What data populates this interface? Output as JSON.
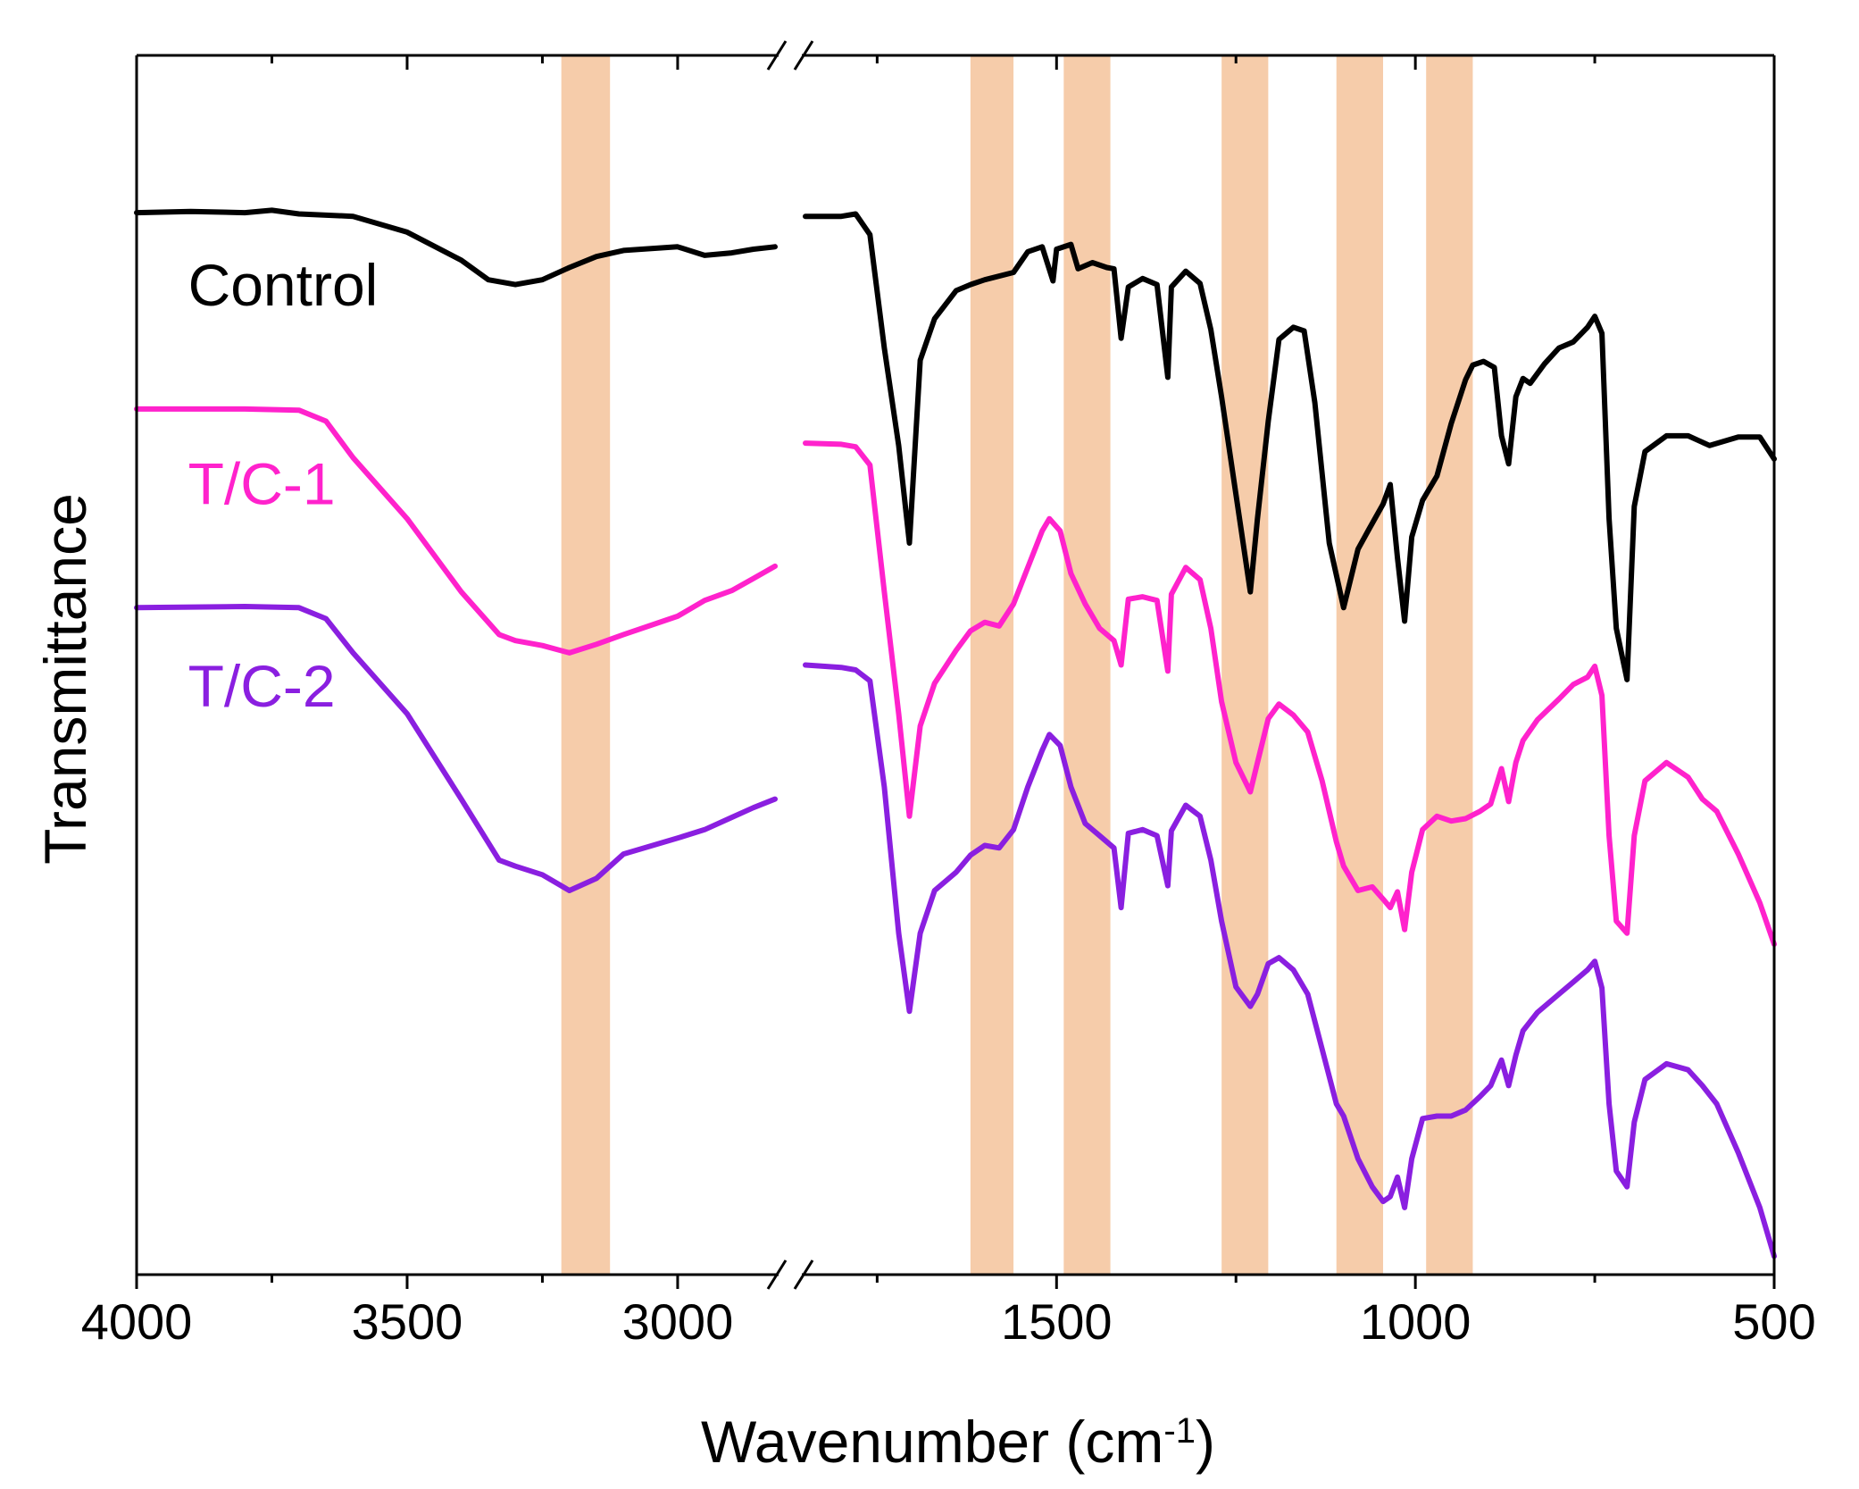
{
  "chart_data": {
    "type": "line",
    "title": "",
    "xlabel": "Wavenumber (cm",
    "xlabel_sup": "-1",
    "xlabel_close": ")",
    "ylabel": "Transmittance",
    "x_axis_reversed": true,
    "x_axis_break": {
      "from": 2820,
      "to": 1850
    },
    "xlim_segments": [
      [
        4000,
        2820
      ],
      [
        1850,
        500
      ]
    ],
    "x_ticks_major": [
      4000,
      3500,
      3000,
      1500,
      1000,
      500
    ],
    "x_tick_labels": [
      "4000",
      "3500",
      "3000",
      "1500",
      "1000",
      "500"
    ],
    "y_ticks_shown": false,
    "ylim": [
      0,
      100
    ],
    "grid": false,
    "highlight_bands": [
      [
        3215,
        3125
      ],
      [
        1620,
        1560
      ],
      [
        1490,
        1425
      ],
      [
        1270,
        1205
      ],
      [
        1110,
        1045
      ],
      [
        985,
        920
      ]
    ],
    "highlight_color": "#f6ccaa",
    "series": [
      {
        "name": "Control",
        "color": "#000000",
        "points": [
          [
            4000,
            87.1
          ],
          [
            3900,
            87.2
          ],
          [
            3800,
            87.1
          ],
          [
            3750,
            87.3
          ],
          [
            3700,
            87.0
          ],
          [
            3600,
            86.8
          ],
          [
            3500,
            85.5
          ],
          [
            3400,
            83.2
          ],
          [
            3350,
            81.6
          ],
          [
            3300,
            81.2
          ],
          [
            3250,
            81.6
          ],
          [
            3200,
            82.6
          ],
          [
            3150,
            83.5
          ],
          [
            3100,
            84.0
          ],
          [
            3000,
            84.3
          ],
          [
            2950,
            83.6
          ],
          [
            2900,
            83.8
          ],
          [
            2860,
            84.1
          ],
          [
            2820,
            84.3
          ],
          null,
          [
            1850,
            86.8
          ],
          [
            1800,
            86.8
          ],
          [
            1780,
            87.0
          ],
          [
            1760,
            85.3
          ],
          [
            1740,
            76.0
          ],
          [
            1720,
            68.0
          ],
          [
            1705,
            60.0
          ],
          [
            1690,
            75.0
          ],
          [
            1670,
            78.4
          ],
          [
            1640,
            80.7
          ],
          [
            1620,
            81.2
          ],
          [
            1600,
            81.6
          ],
          [
            1560,
            82.2
          ],
          [
            1540,
            83.9
          ],
          [
            1520,
            84.3
          ],
          [
            1505,
            81.5
          ],
          [
            1500,
            84.1
          ],
          [
            1480,
            84.5
          ],
          [
            1470,
            82.5
          ],
          [
            1450,
            83.0
          ],
          [
            1430,
            82.6
          ],
          [
            1420,
            82.5
          ],
          [
            1410,
            76.8
          ],
          [
            1400,
            81.0
          ],
          [
            1380,
            81.7
          ],
          [
            1360,
            81.2
          ],
          [
            1345,
            73.6
          ],
          [
            1340,
            81.0
          ],
          [
            1320,
            82.3
          ],
          [
            1300,
            81.3
          ],
          [
            1285,
            77.5
          ],
          [
            1270,
            72.0
          ],
          [
            1250,
            64.0
          ],
          [
            1230,
            56.0
          ],
          [
            1220,
            62.0
          ],
          [
            1205,
            70.0
          ],
          [
            1190,
            76.7
          ],
          [
            1170,
            77.7
          ],
          [
            1155,
            77.4
          ],
          [
            1140,
            71.5
          ],
          [
            1120,
            60.0
          ],
          [
            1100,
            54.7
          ],
          [
            1080,
            59.5
          ],
          [
            1065,
            61.1
          ],
          [
            1045,
            63.2
          ],
          [
            1035,
            64.8
          ],
          [
            1025,
            58.8
          ],
          [
            1015,
            53.6
          ],
          [
            1005,
            60.5
          ],
          [
            990,
            63.5
          ],
          [
            970,
            65.5
          ],
          [
            950,
            69.8
          ],
          [
            930,
            73.4
          ],
          [
            920,
            74.6
          ],
          [
            905,
            74.9
          ],
          [
            890,
            74.4
          ],
          [
            880,
            68.8
          ],
          [
            870,
            66.5
          ],
          [
            860,
            72.0
          ],
          [
            850,
            73.5
          ],
          [
            840,
            73.1
          ],
          [
            820,
            74.7
          ],
          [
            800,
            76.0
          ],
          [
            780,
            76.5
          ],
          [
            760,
            77.7
          ],
          [
            750,
            78.6
          ],
          [
            740,
            77.2
          ],
          [
            730,
            62.0
          ],
          [
            720,
            53.0
          ],
          [
            705,
            48.8
          ],
          [
            695,
            63.0
          ],
          [
            680,
            67.5
          ],
          [
            650,
            68.8
          ],
          [
            620,
            68.8
          ],
          [
            590,
            68.0
          ],
          [
            550,
            68.7
          ],
          [
            520,
            68.7
          ],
          [
            500,
            66.9
          ]
        ]
      },
      {
        "name": "T/C-1",
        "color": "#ff22cc",
        "points": [
          [
            4000,
            71.0
          ],
          [
            3800,
            71.0
          ],
          [
            3700,
            70.9
          ],
          [
            3650,
            70.0
          ],
          [
            3600,
            67.0
          ],
          [
            3500,
            62.0
          ],
          [
            3400,
            56.0
          ],
          [
            3330,
            52.5
          ],
          [
            3300,
            52.0
          ],
          [
            3250,
            51.6
          ],
          [
            3200,
            51.0
          ],
          [
            3150,
            51.7
          ],
          [
            3100,
            52.5
          ],
          [
            3000,
            54.0
          ],
          [
            2950,
            55.3
          ],
          [
            2900,
            56.1
          ],
          [
            2860,
            57.1
          ],
          [
            2820,
            58.1
          ],
          null,
          [
            1850,
            68.2
          ],
          [
            1800,
            68.1
          ],
          [
            1780,
            67.9
          ],
          [
            1760,
            66.4
          ],
          [
            1740,
            56.0
          ],
          [
            1720,
            46.0
          ],
          [
            1705,
            37.6
          ],
          [
            1690,
            45.0
          ],
          [
            1670,
            48.5
          ],
          [
            1640,
            51.2
          ],
          [
            1620,
            52.8
          ],
          [
            1600,
            53.5
          ],
          [
            1580,
            53.2
          ],
          [
            1560,
            55.0
          ],
          [
            1540,
            58.0
          ],
          [
            1520,
            61.0
          ],
          [
            1510,
            62.0
          ],
          [
            1495,
            61.0
          ],
          [
            1480,
            57.5
          ],
          [
            1460,
            55.0
          ],
          [
            1440,
            53.0
          ],
          [
            1420,
            52.0
          ],
          [
            1410,
            50.0
          ],
          [
            1400,
            55.4
          ],
          [
            1380,
            55.6
          ],
          [
            1360,
            55.3
          ],
          [
            1345,
            49.5
          ],
          [
            1340,
            55.8
          ],
          [
            1320,
            58.0
          ],
          [
            1300,
            57.0
          ],
          [
            1285,
            53.0
          ],
          [
            1270,
            47.0
          ],
          [
            1250,
            42.0
          ],
          [
            1230,
            39.6
          ],
          [
            1220,
            42.0
          ],
          [
            1205,
            45.6
          ],
          [
            1190,
            46.8
          ],
          [
            1170,
            45.9
          ],
          [
            1150,
            44.5
          ],
          [
            1130,
            40.5
          ],
          [
            1110,
            35.5
          ],
          [
            1100,
            33.5
          ],
          [
            1080,
            31.5
          ],
          [
            1060,
            31.8
          ],
          [
            1045,
            30.8
          ],
          [
            1035,
            30.1
          ],
          [
            1025,
            31.4
          ],
          [
            1015,
            28.3
          ],
          [
            1005,
            33.0
          ],
          [
            990,
            36.5
          ],
          [
            970,
            37.6
          ],
          [
            950,
            37.2
          ],
          [
            930,
            37.4
          ],
          [
            910,
            38.0
          ],
          [
            895,
            38.6
          ],
          [
            880,
            41.5
          ],
          [
            870,
            38.8
          ],
          [
            860,
            42.0
          ],
          [
            850,
            43.8
          ],
          [
            830,
            45.5
          ],
          [
            800,
            47.2
          ],
          [
            780,
            48.4
          ],
          [
            760,
            49.0
          ],
          [
            750,
            49.9
          ],
          [
            740,
            47.5
          ],
          [
            730,
            36.0
          ],
          [
            720,
            29.0
          ],
          [
            705,
            28.0
          ],
          [
            695,
            36.0
          ],
          [
            680,
            40.5
          ],
          [
            650,
            42.0
          ],
          [
            620,
            40.8
          ],
          [
            600,
            39.0
          ],
          [
            580,
            38.0
          ],
          [
            550,
            34.5
          ],
          [
            520,
            30.5
          ],
          [
            500,
            27.1
          ]
        ]
      },
      {
        "name": "T/C-2",
        "color": "#8a1fe0",
        "points": [
          [
            4000,
            54.7
          ],
          [
            3800,
            54.8
          ],
          [
            3700,
            54.7
          ],
          [
            3650,
            53.8
          ],
          [
            3600,
            51.0
          ],
          [
            3500,
            46.0
          ],
          [
            3400,
            39.0
          ],
          [
            3330,
            34.0
          ],
          [
            3300,
            33.5
          ],
          [
            3250,
            32.8
          ],
          [
            3200,
            31.5
          ],
          [
            3150,
            32.5
          ],
          [
            3100,
            34.5
          ],
          [
            3000,
            35.8
          ],
          [
            2950,
            36.5
          ],
          [
            2900,
            37.5
          ],
          [
            2860,
            38.3
          ],
          [
            2820,
            39.0
          ],
          null,
          [
            1850,
            50.0
          ],
          [
            1800,
            49.8
          ],
          [
            1780,
            49.6
          ],
          [
            1760,
            48.7
          ],
          [
            1740,
            40.0
          ],
          [
            1720,
            28.0
          ],
          [
            1705,
            21.6
          ],
          [
            1690,
            28.0
          ],
          [
            1670,
            31.5
          ],
          [
            1640,
            33.0
          ],
          [
            1620,
            34.4
          ],
          [
            1600,
            35.2
          ],
          [
            1580,
            35.0
          ],
          [
            1560,
            36.5
          ],
          [
            1540,
            40.0
          ],
          [
            1520,
            43.0
          ],
          [
            1510,
            44.3
          ],
          [
            1495,
            43.4
          ],
          [
            1480,
            40.0
          ],
          [
            1460,
            37.0
          ],
          [
            1440,
            36.0
          ],
          [
            1420,
            35.0
          ],
          [
            1410,
            30.1
          ],
          [
            1400,
            36.2
          ],
          [
            1380,
            36.5
          ],
          [
            1360,
            36.0
          ],
          [
            1345,
            31.9
          ],
          [
            1340,
            36.4
          ],
          [
            1320,
            38.5
          ],
          [
            1300,
            37.6
          ],
          [
            1285,
            34.0
          ],
          [
            1270,
            29.0
          ],
          [
            1250,
            23.6
          ],
          [
            1230,
            22.0
          ],
          [
            1220,
            23.0
          ],
          [
            1205,
            25.5
          ],
          [
            1190,
            26.0
          ],
          [
            1170,
            25.0
          ],
          [
            1150,
            23.0
          ],
          [
            1130,
            18.5
          ],
          [
            1110,
            14.0
          ],
          [
            1100,
            13.0
          ],
          [
            1080,
            9.5
          ],
          [
            1060,
            7.2
          ],
          [
            1045,
            6.0
          ],
          [
            1035,
            6.4
          ],
          [
            1025,
            8.0
          ],
          [
            1015,
            5.5
          ],
          [
            1005,
            9.5
          ],
          [
            990,
            12.8
          ],
          [
            970,
            13.0
          ],
          [
            950,
            13.0
          ],
          [
            930,
            13.5
          ],
          [
            910,
            14.6
          ],
          [
            895,
            15.5
          ],
          [
            880,
            17.6
          ],
          [
            870,
            15.5
          ],
          [
            860,
            18.0
          ],
          [
            850,
            20.0
          ],
          [
            830,
            21.5
          ],
          [
            800,
            23.0
          ],
          [
            780,
            24.0
          ],
          [
            760,
            25.0
          ],
          [
            750,
            25.7
          ],
          [
            740,
            23.5
          ],
          [
            730,
            14.0
          ],
          [
            720,
            8.5
          ],
          [
            705,
            7.2
          ],
          [
            695,
            12.5
          ],
          [
            680,
            16.0
          ],
          [
            650,
            17.3
          ],
          [
            620,
            16.8
          ],
          [
            600,
            15.5
          ],
          [
            580,
            14.0
          ],
          [
            550,
            10.0
          ],
          [
            520,
            5.5
          ],
          [
            500,
            1.5
          ]
        ]
      }
    ],
    "labels": [
      {
        "text": "Control",
        "color": "#000000",
        "x": 3905,
        "y": 79.5
      },
      {
        "text": "T/C-1",
        "color": "#ff22cc",
        "x": 3905,
        "y": 63.2
      },
      {
        "text": "T/C-2",
        "color": "#8a1fe0",
        "x": 3905,
        "y": 46.6
      }
    ]
  }
}
